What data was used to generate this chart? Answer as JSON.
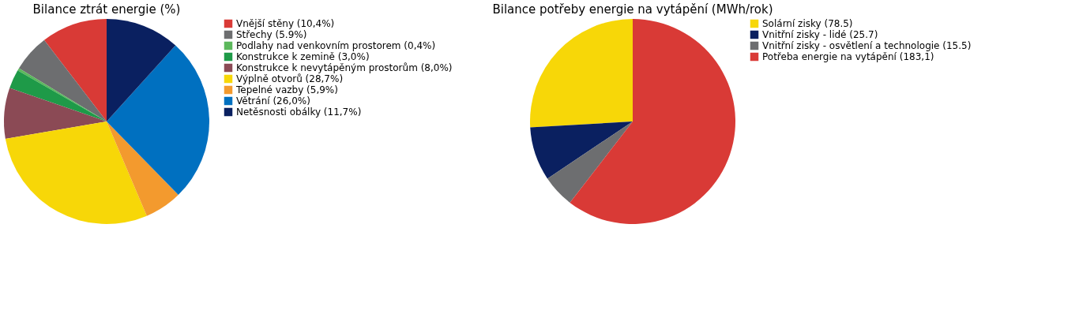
{
  "chart_data": [
    {
      "type": "pie",
      "title": "Bilance ztrát energie (%)",
      "legend": "right",
      "categories": [
        "Vnější stěny (10,4%)",
        "Střechy (5.9%)",
        "Podlahy nad venkovním prostorem (0,4%)",
        "Konstrukce k zemině (3,0%)",
        "Konstrukce k nevytápěným prostorům (8,0%)",
        "Výplně otvorů (28,7%)",
        "Tepelné vazby (5,9%)",
        "Větrání (26,0%)",
        "Netěsnosti obálky (11,7%)"
      ],
      "values": [
        10.4,
        5.9,
        0.4,
        3.0,
        8.0,
        28.7,
        5.9,
        26.0,
        11.7
      ],
      "colors": [
        "#d93a36",
        "#6d6e70",
        "#5cb85c",
        "#1e9a48",
        "#8b4a55",
        "#f7d708",
        "#f39a2e",
        "#0070c0",
        "#0a2060"
      ]
    },
    {
      "type": "pie",
      "title": "Bilance potřeby energie na vytápění (MWh/rok)",
      "legend": "right",
      "categories": [
        "Solární zisky (78.5)",
        "Vnitřní zisky - lidé (25.7)",
        "Vnitřní zisky - osvětlení a technologie (15.5)",
        "Potřeba energie na vytápění (183,1)"
      ],
      "values": [
        78.5,
        25.7,
        15.5,
        183.1
      ],
      "colors": [
        "#f7d708",
        "#0a2060",
        "#6d6e70",
        "#d93a36"
      ]
    }
  ]
}
